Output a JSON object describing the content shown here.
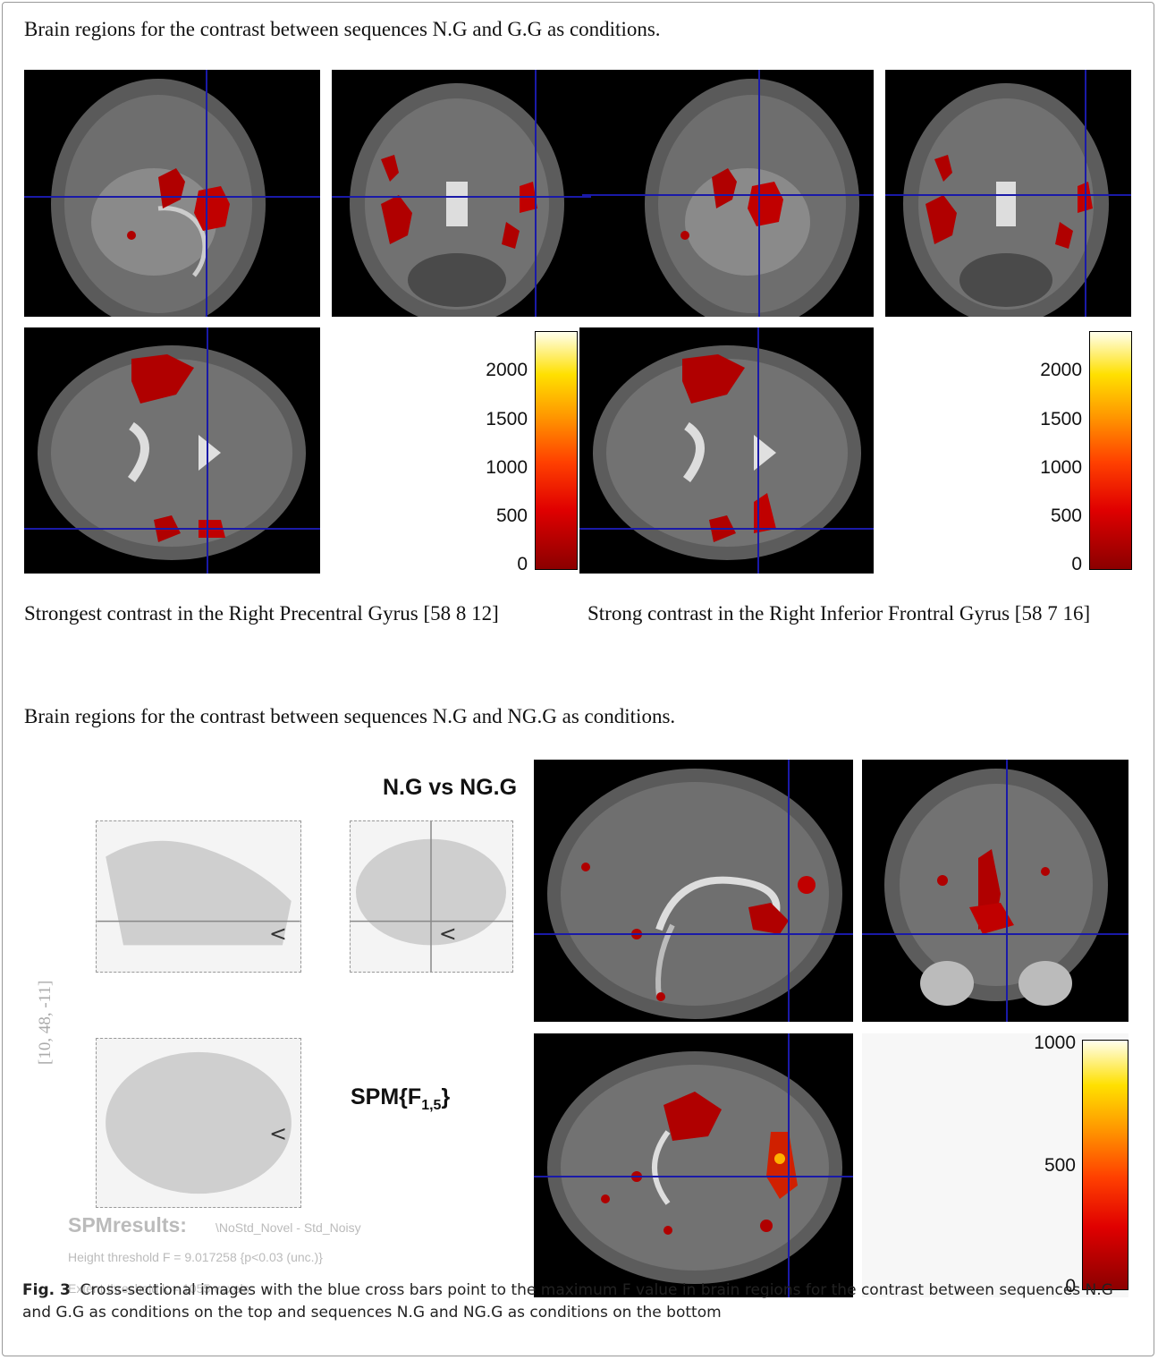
{
  "top_section": {
    "heading": "Brain regions for the contrast between sequences N.G and G.G as conditions.",
    "colorbar_ticks": [
      "2000",
      "1500",
      "1000",
      "500",
      "0"
    ],
    "caption_left": "Strongest contrast in the Right Precentral Gyrus [58 8 12]",
    "caption_right": "Strong contrast in the Right Inferior Frontral Gyrus [58 7 16]"
  },
  "bottom_section": {
    "heading": "Brain regions for the contrast between sequences N.G and NG.G as conditions.",
    "contrast_title": "N.G vs NG.G",
    "spm_label_prefix": "SPM{F",
    "spm_label_subscript": "1,5",
    "spm_label_suffix": "}",
    "coordinates": "[10, 48, -11]",
    "spm_results_title": "SPMresults:",
    "spm_results_name": "\\NoStd_Novel - Std_Noisy",
    "height_threshold": "Height threshold F = 9.017258  {p<0.03 (unc.)}",
    "extent_threshold": "Extent threshold k = 1055 voxels",
    "colorbar_ticks": [
      "1000",
      "500",
      "0"
    ]
  },
  "figure_caption": {
    "label": "Fig. 3",
    "text": "Cross-sectional images with the blue cross bars point to the maximum F value in brain regions for the contrast between sequences N.G and G.G as conditions on the top and sequences N.G and NG.G as conditions on the bottom"
  },
  "colors": {
    "crosshair": "#1a1aa8",
    "activation": "#c00000",
    "panel_bg": "#000000"
  }
}
